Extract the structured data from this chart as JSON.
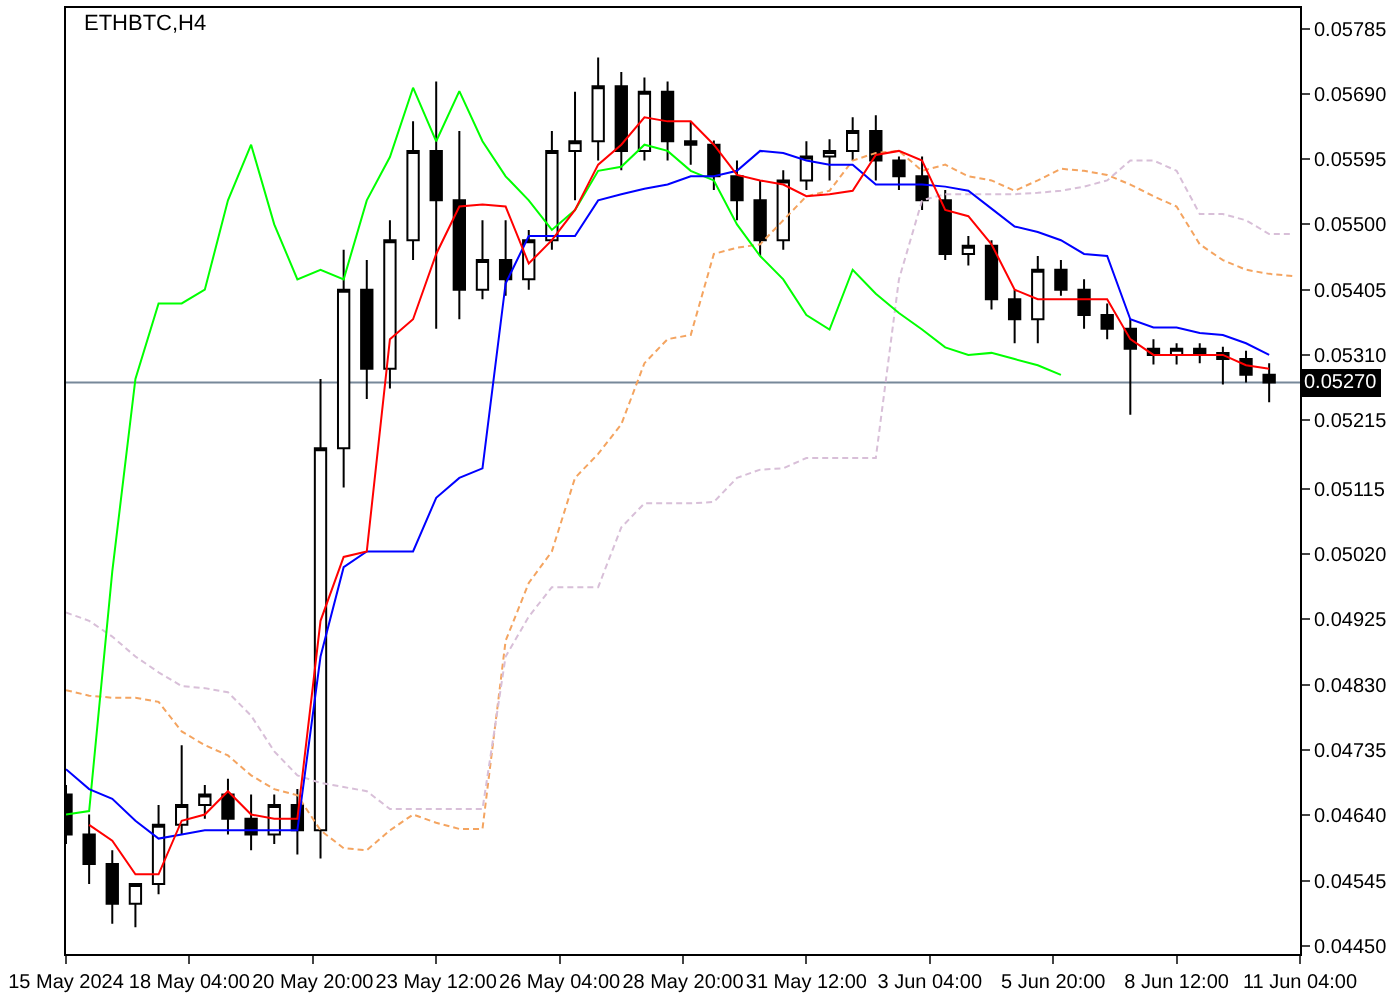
{
  "chart_data": {
    "type": "candlestick",
    "title": "ETHBTC,H4",
    "color": "#000000",
    "x": [
      "2024-05-15T12:00",
      "2024-05-16T00:00",
      "2024-05-16T12:00",
      "2024-05-17T00:00",
      "2024-05-17T12:00",
      "2024-05-18T00:00",
      "2024-05-18T12:00",
      "2024-05-19T00:00",
      "2024-05-19T12:00",
      "2024-05-20T00:00",
      "2024-05-20T12:00",
      "2024-05-21T00:00",
      "2024-05-21T12:00",
      "2024-05-22T00:00",
      "2024-05-22T12:00",
      "2024-05-23T00:00",
      "2024-05-23T12:00",
      "2024-05-24T00:00",
      "2024-05-24T12:00",
      "2024-05-25T00:00",
      "2024-05-25T12:00",
      "2024-05-26T00:00",
      "2024-05-26T12:00",
      "2024-05-27T00:00",
      "2024-05-27T12:00",
      "2024-05-28T00:00",
      "2024-05-28T12:00",
      "2024-05-29T00:00",
      "2024-05-29T12:00",
      "2024-05-30T00:00",
      "2024-05-30T12:00",
      "2024-05-31T00:00",
      "2024-05-31T12:00",
      "2024-06-01T00:00",
      "2024-06-01T12:00",
      "2024-06-02T00:00",
      "2024-06-02T12:00",
      "2024-06-03T00:00",
      "2024-06-03T12:00",
      "2024-06-04T00:00",
      "2024-06-04T12:00",
      "2024-06-05T00:00",
      "2024-06-05T12:00",
      "2024-06-06T00:00",
      "2024-06-06T12:00",
      "2024-06-07T00:00",
      "2024-06-07T12:00",
      "2024-06-08T00:00",
      "2024-06-08T12:00",
      "2024-06-09T00:00",
      "2024-06-09T12:00",
      "2024-06-10T00:00",
      "2024-06-10T12:00"
    ],
    "ohlc": [
      [
        0.0467,
        0.04684,
        0.04598,
        0.04612
      ],
      [
        0.04612,
        0.04641,
        0.0454,
        0.04569
      ],
      [
        0.04569,
        0.04589,
        0.04482,
        0.04511
      ],
      [
        0.04511,
        0.0454,
        0.04477,
        0.0454
      ],
      [
        0.0454,
        0.04655,
        0.04525,
        0.04626
      ],
      [
        0.04626,
        0.04742,
        0.04612,
        0.04655
      ],
      [
        0.04655,
        0.04684,
        0.04635,
        0.0467
      ],
      [
        0.0467,
        0.04693,
        0.04612,
        0.04635
      ],
      [
        0.04635,
        0.0467,
        0.04589,
        0.04612
      ],
      [
        0.04612,
        0.0467,
        0.04598,
        0.04655
      ],
      [
        0.04655,
        0.04678,
        0.04583,
        0.04618
      ],
      [
        0.04618,
        0.05275,
        0.04577,
        0.05174
      ],
      [
        0.05174,
        0.05463,
        0.05117,
        0.05405
      ],
      [
        0.05405,
        0.05448,
        0.05246,
        0.0529
      ],
      [
        0.0529,
        0.05506,
        0.05261,
        0.05477
      ],
      [
        0.05477,
        0.0565,
        0.05448,
        0.05607
      ],
      [
        0.05607,
        0.05708,
        0.05348,
        0.05535
      ],
      [
        0.05535,
        0.05636,
        0.05362,
        0.05405
      ],
      [
        0.05405,
        0.05506,
        0.05391,
        0.05448
      ],
      [
        0.05448,
        0.05506,
        0.05396,
        0.0542
      ],
      [
        0.0542,
        0.05492,
        0.05405,
        0.05477
      ],
      [
        0.05477,
        0.05636,
        0.05463,
        0.05607
      ],
      [
        0.05607,
        0.05693,
        0.05535,
        0.05621
      ],
      [
        0.05621,
        0.05743,
        0.05593,
        0.05701
      ],
      [
        0.05701,
        0.05722,
        0.05579,
        0.05607
      ],
      [
        0.05607,
        0.05714,
        0.05593,
        0.05693
      ],
      [
        0.05693,
        0.05708,
        0.05593,
        0.05621
      ],
      [
        0.05621,
        0.0565,
        0.05587,
        0.05616
      ],
      [
        0.05616,
        0.05622,
        0.0555,
        0.0557
      ],
      [
        0.0557,
        0.05593,
        0.05506,
        0.05535
      ],
      [
        0.05535,
        0.05564,
        0.05454,
        0.05477
      ],
      [
        0.05477,
        0.05579,
        0.05463,
        0.05564
      ],
      [
        0.05564,
        0.05621,
        0.0555,
        0.05599
      ],
      [
        0.05599,
        0.05624,
        0.05564,
        0.05607
      ],
      [
        0.05607,
        0.05656,
        0.05593,
        0.05636
      ],
      [
        0.05636,
        0.05659,
        0.05564,
        0.05593
      ],
      [
        0.05593,
        0.05599,
        0.0555,
        0.0557
      ],
      [
        0.0557,
        0.05599,
        0.05521,
        0.05535
      ],
      [
        0.05535,
        0.0555,
        0.05448,
        0.05457
      ],
      [
        0.05457,
        0.05483,
        0.0544,
        0.05469
      ],
      [
        0.05469,
        0.05477,
        0.05376,
        0.05391
      ],
      [
        0.05391,
        0.05405,
        0.05327,
        0.05362
      ],
      [
        0.05362,
        0.05454,
        0.05327,
        0.05434
      ],
      [
        0.05434,
        0.05448,
        0.05396,
        0.05405
      ],
      [
        0.05405,
        0.0542,
        0.05348,
        0.05368
      ],
      [
        0.05368,
        0.05385,
        0.05333,
        0.05348
      ],
      [
        0.05348,
        0.05362,
        0.05223,
        0.05319
      ],
      [
        0.05319,
        0.05333,
        0.05296,
        0.0531
      ],
      [
        0.0531,
        0.05327,
        0.05296,
        0.05319
      ],
      [
        0.05319,
        0.05327,
        0.05298,
        0.05313
      ],
      [
        0.05313,
        0.05322,
        0.05267,
        0.05304
      ],
      [
        0.05304,
        0.05316,
        0.0527,
        0.05281
      ],
      [
        0.05281,
        0.05298,
        0.05241,
        0.0527
      ]
    ],
    "series": [
      {
        "type": "line",
        "color": "#f4a460",
        "line_style": "dashed",
        "x": [
          "2024-05-15T12:00",
          "2024-05-16T00:00",
          "2024-05-16T12:00",
          "2024-05-17T00:00",
          "2024-05-17T12:00",
          "2024-05-18T00:00",
          "2024-05-18T12:00",
          "2024-05-19T00:00",
          "2024-05-19T12:00",
          "2024-05-20T00:00",
          "2024-05-20T12:00",
          "2024-05-21T00:00",
          "2024-05-21T12:00",
          "2024-05-22T00:00",
          "2024-05-22T12:00",
          "2024-05-23T00:00",
          "2024-05-23T12:00",
          "2024-05-24T00:00",
          "2024-05-24T12:00",
          "2024-05-25T00:00",
          "2024-05-25T12:00",
          "2024-05-26T00:00",
          "2024-05-26T12:00",
          "2024-05-27T00:00",
          "2024-05-27T12:00",
          "2024-05-28T00:00",
          "2024-05-28T12:00",
          "2024-05-29T00:00",
          "2024-05-29T12:00",
          "2024-05-30T00:00",
          "2024-05-30T12:00",
          "2024-05-31T00:00",
          "2024-05-31T12:00",
          "2024-06-01T00:00",
          "2024-06-01T12:00",
          "2024-06-02T00:00",
          "2024-06-02T12:00",
          "2024-06-03T00:00",
          "2024-06-03T12:00",
          "2024-06-04T00:00",
          "2024-06-04T12:00",
          "2024-06-05T00:00",
          "2024-06-05T12:00",
          "2024-06-06T00:00",
          "2024-06-06T12:00",
          "2024-06-07T00:00",
          "2024-06-07T12:00",
          "2024-06-08T00:00",
          "2024-06-08T12:00",
          "2024-06-09T00:00",
          "2024-06-09T12:00",
          "2024-06-10T00:00",
          "2024-06-10T12:00",
          "2024-06-11T00:00"
        ],
        "values": [
          0.04822,
          0.04814,
          0.04811,
          0.04811,
          0.04805,
          0.04762,
          0.04742,
          0.04727,
          0.04698,
          0.04678,
          0.04669,
          0.04618,
          0.04592,
          0.04589,
          0.04618,
          0.04641,
          0.04629,
          0.0462,
          0.0462,
          0.04894,
          0.04978,
          0.05024,
          0.05131,
          0.05166,
          0.05209,
          0.05298,
          0.05333,
          0.05339,
          0.05457,
          0.05466,
          0.05471,
          0.05506,
          0.05541,
          0.05549,
          0.05593,
          0.05604,
          0.05607,
          0.05578,
          0.05587,
          0.0557,
          0.05564,
          0.05549,
          0.05564,
          0.05581,
          0.05578,
          0.05572,
          0.05558,
          0.05541,
          0.05526,
          0.05471,
          0.05448,
          0.05434,
          0.05428,
          0.05425
        ]
      },
      {
        "type": "line",
        "color": "#d8bfd8",
        "line_style": "dashed",
        "x": [
          "2024-05-15T12:00",
          "2024-05-16T00:00",
          "2024-05-16T12:00",
          "2024-05-17T00:00",
          "2024-05-17T12:00",
          "2024-05-18T00:00",
          "2024-05-18T12:00",
          "2024-05-19T00:00",
          "2024-05-19T12:00",
          "2024-05-20T00:00",
          "2024-05-20T12:00",
          "2024-05-21T00:00",
          "2024-05-21T12:00",
          "2024-05-22T00:00",
          "2024-05-22T12:00",
          "2024-05-23T00:00",
          "2024-05-23T12:00",
          "2024-05-24T00:00",
          "2024-05-24T12:00",
          "2024-05-25T00:00",
          "2024-05-25T12:00",
          "2024-05-26T00:00",
          "2024-05-26T12:00",
          "2024-05-27T00:00",
          "2024-05-27T12:00",
          "2024-05-28T00:00",
          "2024-05-28T12:00",
          "2024-05-29T00:00",
          "2024-05-29T12:00",
          "2024-05-30T00:00",
          "2024-05-30T12:00",
          "2024-05-31T00:00",
          "2024-05-31T12:00",
          "2024-06-01T00:00",
          "2024-06-01T12:00",
          "2024-06-02T00:00",
          "2024-06-02T12:00",
          "2024-06-03T00:00",
          "2024-06-03T12:00",
          "2024-06-04T00:00",
          "2024-06-04T12:00",
          "2024-06-05T00:00",
          "2024-06-05T12:00",
          "2024-06-06T00:00",
          "2024-06-06T12:00",
          "2024-06-07T00:00",
          "2024-06-07T12:00",
          "2024-06-08T00:00",
          "2024-06-08T12:00",
          "2024-06-09T00:00",
          "2024-06-09T12:00",
          "2024-06-10T00:00",
          "2024-06-10T12:00",
          "2024-06-11T00:00"
        ],
        "values": [
          0.04935,
          0.04923,
          0.049,
          0.04871,
          0.04848,
          0.04828,
          0.04825,
          0.04819,
          0.04785,
          0.04733,
          0.04698,
          0.04687,
          0.04681,
          0.04675,
          0.04649,
          0.04649,
          0.04649,
          0.04649,
          0.04649,
          0.04871,
          0.04929,
          0.04972,
          0.04972,
          0.04972,
          0.05059,
          0.05094,
          0.05094,
          0.05094,
          0.05096,
          0.05131,
          0.05143,
          0.05145,
          0.0516,
          0.0516,
          0.0516,
          0.0516,
          0.0542,
          0.05535,
          0.05544,
          0.05544,
          0.05544,
          0.05544,
          0.05546,
          0.05549,
          0.05555,
          0.05564,
          0.05593,
          0.05593,
          0.05578,
          0.05515,
          0.05515,
          0.05506,
          0.05486,
          0.05486
        ]
      },
      {
        "type": "line",
        "color": "#00ff00",
        "values": [
          0.04641,
          0.04646,
          0.04995,
          0.05275,
          0.05385,
          0.05385,
          0.05405,
          0.05535,
          0.05616,
          0.055,
          0.0542,
          0.05434,
          0.0542,
          0.05535,
          0.05598,
          0.05699,
          0.05621,
          0.05694,
          0.05621,
          0.0557,
          0.05535,
          0.05492,
          0.05521,
          0.05578,
          0.05584,
          0.05616,
          0.05607,
          0.05578,
          0.05564,
          0.055,
          0.05454,
          0.0542,
          0.05368,
          0.05347,
          0.05434,
          0.05399,
          0.05371,
          0.05347,
          0.05321,
          0.0531,
          0.05313,
          0.05304,
          0.05295,
          0.05281,
          null,
          null,
          null,
          null,
          null,
          null,
          null,
          null,
          null
        ]
      },
      {
        "type": "line",
        "color": "#0000ff",
        "values": [
          0.04707,
          0.04678,
          0.04664,
          0.04632,
          0.04606,
          0.04612,
          0.04618,
          0.04618,
          0.04618,
          0.04618,
          0.04618,
          0.04871,
          0.05001,
          0.05024,
          0.05024,
          0.05024,
          0.05102,
          0.05131,
          0.05145,
          0.05414,
          0.05483,
          0.05483,
          0.05483,
          0.05535,
          0.05544,
          0.05552,
          0.05558,
          0.0557,
          0.0557,
          0.05578,
          0.05607,
          0.05604,
          0.05593,
          0.05587,
          0.05587,
          0.05558,
          0.05558,
          0.05558,
          0.05555,
          0.05549,
          0.05523,
          0.05497,
          0.05489,
          0.05477,
          0.05457,
          0.05454,
          0.05362,
          0.0535,
          0.0535,
          0.05342,
          0.05339,
          0.05327,
          0.0531
        ]
      },
      {
        "type": "line",
        "color": "#ff0000",
        "values": [
          null,
          0.04626,
          0.04603,
          0.04554,
          0.04554,
          0.04632,
          0.04641,
          0.04675,
          0.04641,
          0.04635,
          0.04635,
          0.04923,
          0.05016,
          0.05024,
          0.05333,
          0.05362,
          0.05457,
          0.05526,
          0.05529,
          0.05526,
          0.05443,
          0.05477,
          0.05521,
          0.05587,
          0.05616,
          0.05656,
          0.0565,
          0.0565,
          0.05616,
          0.05572,
          0.05564,
          0.05558,
          0.05541,
          0.05544,
          0.05549,
          0.05601,
          0.05607,
          0.05593,
          0.05521,
          0.05512,
          0.05471,
          0.05405,
          0.05391,
          0.05391,
          0.05391,
          0.05391,
          0.05333,
          0.0531,
          0.0531,
          0.0531,
          0.0531,
          0.05295,
          0.0529
        ]
      }
    ],
    "xlim": [
      "2024-05-15T12:00",
      "2024-06-11T04:00"
    ],
    "xticks": [
      {
        "value": "2024-05-15T12:00",
        "label": "15 May 2024"
      },
      {
        "value": "2024-05-18T04:00",
        "label": "18 May 04:00"
      },
      {
        "value": "2024-05-20T20:00",
        "label": "20 May 20:00"
      },
      {
        "value": "2024-05-23T12:00",
        "label": "23 May 12:00"
      },
      {
        "value": "2024-05-26T04:00",
        "label": "26 May 04:00"
      },
      {
        "value": "2024-05-28T20:00",
        "label": "28 May 20:00"
      },
      {
        "value": "2024-05-31T12:00",
        "label": "31 May 12:00"
      },
      {
        "value": "2024-06-03T04:00",
        "label": "3 Jun 04:00"
      },
      {
        "value": "2024-06-05T20:00",
        "label": "5 Jun 20:00"
      },
      {
        "value": "2024-06-08T12:00",
        "label": "8 Jun 12:00"
      },
      {
        "value": "2024-06-11T04:00",
        "label": "11 Jun 04:00"
      }
    ],
    "ylim": [
      0.04438,
      0.05815
    ],
    "yticks": [
      0.05785,
      {
        "value": 0.0569,
        "label": "0.05690"
      },
      0.05595,
      {
        "value": 0.055,
        "label": "0.05500"
      },
      0.05405,
      {
        "value": 0.0531,
        "label": "0.05310"
      },
      0.05215,
      0.05115,
      {
        "value": 0.0502,
        "label": "0.05020"
      },
      0.04925,
      {
        "value": 0.0483,
        "label": "0.04830"
      },
      0.04735,
      {
        "value": 0.0464,
        "label": "0.04640"
      },
      0.04545,
      {
        "value": 0.0445,
        "label": "0.04450"
      }
    ],
    "ref_lines": [
      {
        "axis": "y",
        "value": 0.0527,
        "label": "0.05270",
        "color": "#778899"
      }
    ],
    "grid": false
  }
}
